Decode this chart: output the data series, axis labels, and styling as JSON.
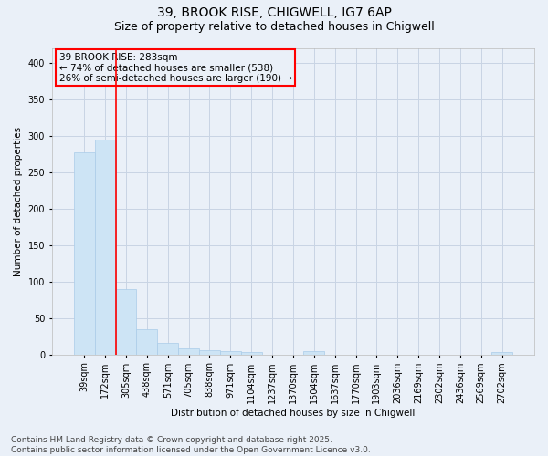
{
  "title1": "39, BROOK RISE, CHIGWELL, IG7 6AP",
  "title2": "Size of property relative to detached houses in Chigwell",
  "xlabel": "Distribution of detached houses by size in Chigwell",
  "ylabel": "Number of detached properties",
  "bar_color": "#cde4f5",
  "bar_edgecolor": "#aacce8",
  "grid_color": "#c8d4e4",
  "background_color": "#eaf0f8",
  "vline_color": "red",
  "vline_x_index": 1.5,
  "annotation_text": "39 BROOK RISE: 283sqm\n← 74% of detached houses are smaller (538)\n26% of semi-detached houses are larger (190) →",
  "annotation_box_color": "red",
  "annotation_fontsize": 7.5,
  "categories": [
    "39sqm",
    "172sqm",
    "305sqm",
    "438sqm",
    "571sqm",
    "705sqm",
    "838sqm",
    "971sqm",
    "1104sqm",
    "1237sqm",
    "1370sqm",
    "1504sqm",
    "1637sqm",
    "1770sqm",
    "1903sqm",
    "2036sqm",
    "2169sqm",
    "2302sqm",
    "2436sqm",
    "2569sqm",
    "2702sqm"
  ],
  "values": [
    277,
    295,
    89,
    34,
    16,
    8,
    6,
    4,
    3,
    0,
    0,
    4,
    0,
    0,
    0,
    0,
    0,
    0,
    0,
    0,
    3
  ],
  "ylim": [
    0,
    420
  ],
  "yticks": [
    0,
    50,
    100,
    150,
    200,
    250,
    300,
    350,
    400
  ],
  "footer_text": "Contains HM Land Registry data © Crown copyright and database right 2025.\nContains public sector information licensed under the Open Government Licence v3.0.",
  "title1_fontsize": 10,
  "title2_fontsize": 9,
  "footer_fontsize": 6.5,
  "axis_label_fontsize": 7.5,
  "tick_fontsize": 7
}
